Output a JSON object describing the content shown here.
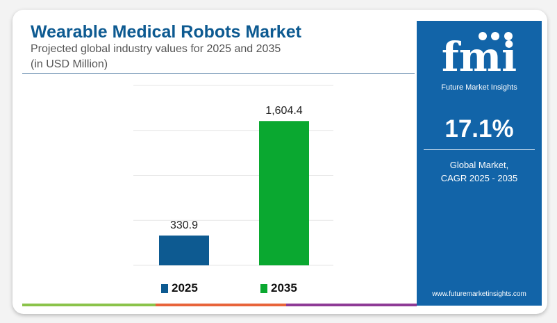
{
  "header": {
    "title": "Wearable Medical Robots Market",
    "subtitle": "Projected global industry values for 2025 and 2035",
    "unit": "(in USD Million)"
  },
  "chart_data": {
    "type": "bar",
    "categories": [
      "2025",
      "2035"
    ],
    "values": [
      330.9,
      1604.4
    ],
    "data_labels": [
      "330.9",
      "1,604.4"
    ],
    "ylim": [
      0,
      2000
    ],
    "grid": true,
    "legend_placement": "bottom",
    "colors": [
      "#0d5a91",
      "#0aa830"
    ],
    "title": "",
    "xlabel": "",
    "ylabel": ""
  },
  "legend": [
    {
      "label": "2025",
      "color": "#0d5a91"
    },
    {
      "label": "2035",
      "color": "#0aa830"
    }
  ],
  "panel": {
    "brand": "Future Market Insights",
    "logo_text": "fmi",
    "cagr": "17.1%",
    "desc1": "Global Market,",
    "desc2": "CAGR 2025 - 2035",
    "url": "www.futuremarketinsights.com",
    "bg": "#1264a8"
  },
  "footer_colors": [
    "#8bc34a",
    "#e8643a",
    "#8e3a96"
  ]
}
